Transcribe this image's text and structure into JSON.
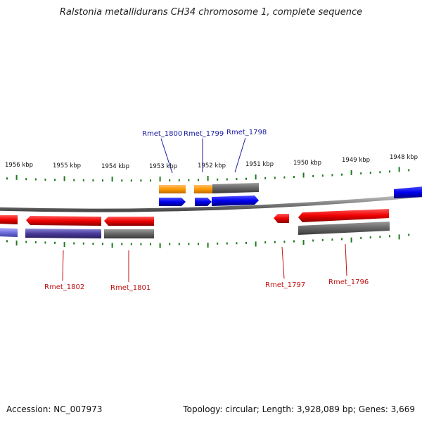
{
  "title": "Ralstonia metallidurans CH34 chromosome 1, complete sequence",
  "footer": {
    "accession_label": "Accession:",
    "accession": "NC_007973",
    "topology_label": "Topology:",
    "topology": "circular",
    "length_label": "Length:",
    "length": "3,928,089 bp",
    "genes_label": "Genes:",
    "genes": "3,669"
  },
  "colors": {
    "forward_strand": "#0000ee",
    "reverse_strand": "#ee0000",
    "cds_gray": "#666666",
    "rna_orange": "#ff9900",
    "ticks": "#1a7a1a",
    "backbone": "#888888"
  },
  "scale_labels": [
    "1956 kbp",
    "1955 kbp",
    "1954 kbp",
    "1953 kbp",
    "1952 kbp",
    "1951 kbp",
    "1950 kbp",
    "1949 kbp",
    "1948 kbp"
  ],
  "gene_labels_top": [
    {
      "name": "Rmet_1800",
      "color": "#1a1aa0"
    },
    {
      "name": "Rmet_1799",
      "color": "#1a1aa0"
    },
    {
      "name": "Rmet_1798",
      "color": "#1a1aa0"
    }
  ],
  "gene_labels_bottom": [
    {
      "name": "Rmet_1802",
      "color": "#c01010"
    },
    {
      "name": "Rmet_1801",
      "color": "#c01010"
    },
    {
      "name": "Rmet_1797",
      "color": "#c01010"
    },
    {
      "name": "Rmet_1796",
      "color": "#c01010"
    }
  ]
}
